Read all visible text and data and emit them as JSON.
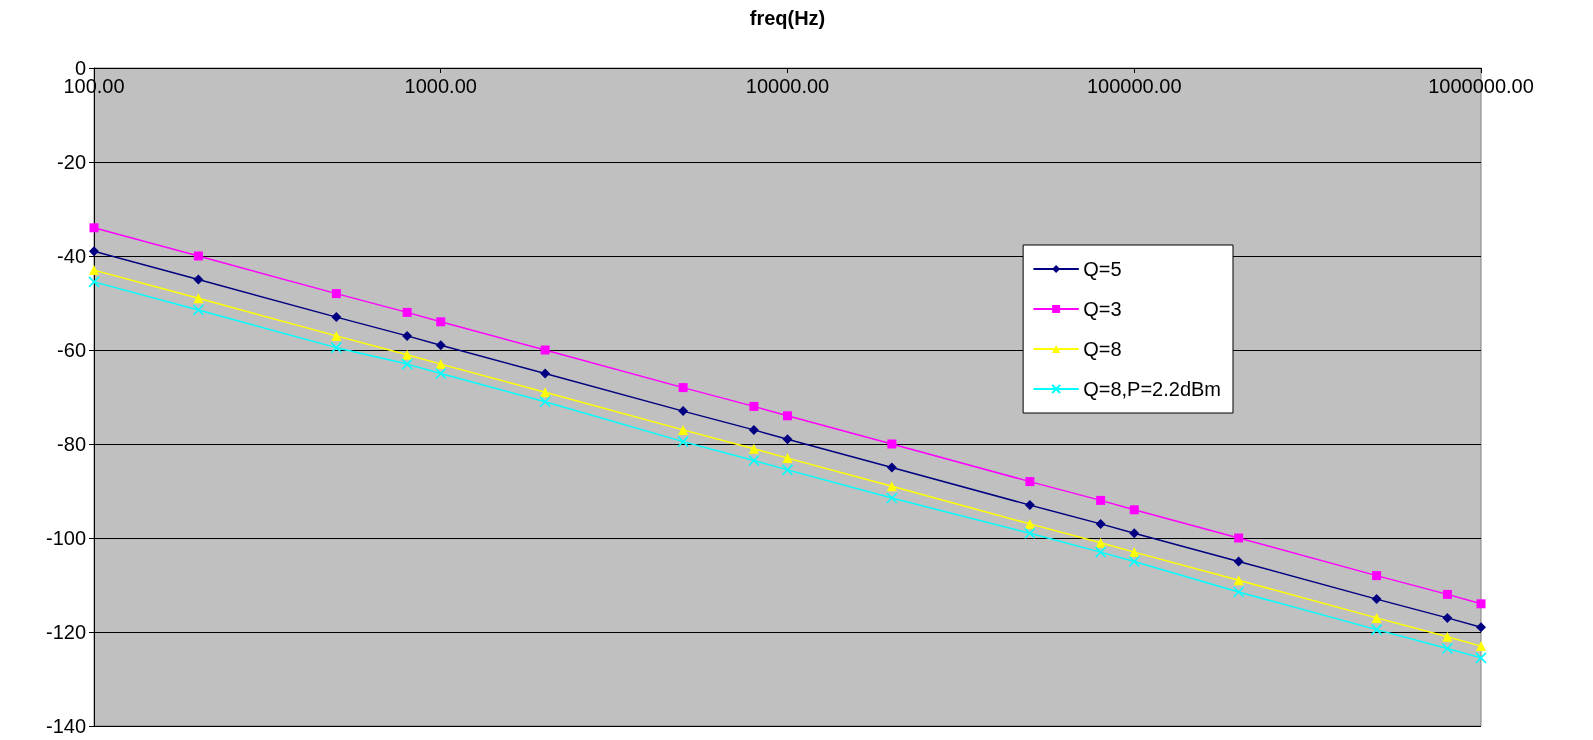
{
  "chart_data": {
    "type": "line",
    "xlabel": "freq(Hz)",
    "x": [
      100,
      200,
      500,
      800,
      1000,
      2000,
      5000,
      8000,
      10000,
      20000,
      50000,
      80000,
      100000,
      200000,
      500000,
      800000,
      1000000
    ],
    "series": [
      {
        "name": "Q=5",
        "color": "#000080",
        "marker": "diamond",
        "values": [
          -39,
          -45,
          -53,
          -57,
          -59,
          -65,
          -73,
          -77,
          -79,
          -85,
          -93,
          -97,
          -99,
          -105,
          -113,
          -117,
          -119
        ]
      },
      {
        "name": "Q=3",
        "color": "#ff00ff",
        "marker": "square",
        "values": [
          -34,
          -40,
          -48,
          -52,
          -54,
          -60,
          -68,
          -72,
          -74,
          -80,
          -88,
          -92,
          -94,
          -100,
          -108,
          -112,
          -114
        ]
      },
      {
        "name": "Q=8",
        "color": "#ffff00",
        "marker": "triangle",
        "values": [
          -43,
          -49,
          -57,
          -61,
          -63,
          -69,
          -77,
          -81,
          -83,
          -89,
          -97,
          -101,
          -103,
          -109,
          -117,
          -121,
          -123
        ]
      },
      {
        "name": "Q=8,P=2.2dBm",
        "color": "#00ffff",
        "marker": "cross",
        "values": [
          -45.5,
          -51.5,
          -59.5,
          -63,
          -65,
          -71,
          -79.5,
          -83.5,
          -85.5,
          -91.5,
          -99,
          -103,
          -105,
          -111.5,
          -119.5,
          -123.5,
          -125.5
        ]
      }
    ],
    "xlim": [
      100,
      1000000
    ],
    "xticks": [
      {
        "value": 100,
        "label": "100.00"
      },
      {
        "value": 1000,
        "label": "1000.00"
      },
      {
        "value": 10000,
        "label": "10000.00"
      },
      {
        "value": 100000,
        "label": "100000.00"
      },
      {
        "value": 1000000,
        "label": "1000000.00"
      }
    ],
    "ylim": [
      -140,
      0
    ],
    "yticks": [
      -140,
      -120,
      -100,
      -80,
      -60,
      -40,
      -20,
      0
    ],
    "log": "x",
    "grid": "y",
    "legend": "right",
    "line_style": "solid"
  }
}
